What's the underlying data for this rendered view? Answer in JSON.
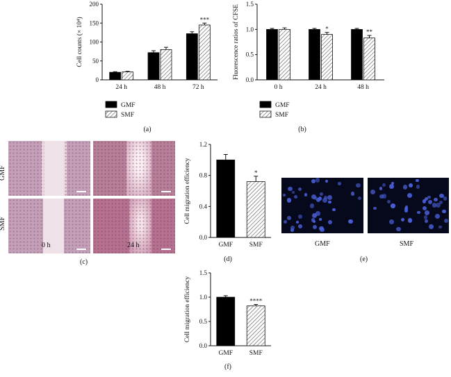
{
  "colors": {
    "gmf": "#000000",
    "smf_hatch": "#555555",
    "wound_tissue": "#c9a0b2",
    "fluor_bg": "#06091c",
    "fluor_cell": "#4a5fd6"
  },
  "chart_data": [
    {
      "id": "a",
      "type": "bar",
      "panel_label": "(a)",
      "ylabel": "Cell counts (× 10⁴)",
      "ylim": [
        0,
        200
      ],
      "yticks": [
        0,
        50,
        100,
        150,
        200
      ],
      "categories": [
        "24 h",
        "48 h",
        "72 h"
      ],
      "series": [
        {
          "name": "GMF",
          "values": [
            20,
            72,
            122
          ],
          "errors": [
            1.5,
            5,
            5
          ],
          "sig": [
            "",
            "",
            ""
          ]
        },
        {
          "name": "SMF",
          "values": [
            21,
            80,
            145
          ],
          "errors": [
            1.5,
            6,
            5
          ],
          "sig": [
            "",
            "",
            "***"
          ]
        }
      ],
      "legend": "bottom-left"
    },
    {
      "id": "b",
      "type": "bar",
      "panel_label": "(b)",
      "ylabel": "Fluorescence ratios of CFSE",
      "ylim": [
        0,
        1.5
      ],
      "yticks": [
        "0.0",
        "0.5",
        "1.0",
        "1.5"
      ],
      "categories": [
        "0 h",
        "24 h",
        "48 h"
      ],
      "series": [
        {
          "name": "GMF",
          "values": [
            1.0,
            1.0,
            1.0
          ],
          "errors": [
            0.02,
            0.02,
            0.02
          ],
          "sig": [
            "",
            "",
            ""
          ]
        },
        {
          "name": "SMF",
          "values": [
            1.0,
            0.9,
            0.83
          ],
          "errors": [
            0.03,
            0.04,
            0.05
          ],
          "sig": [
            "",
            "*",
            "**"
          ]
        }
      ],
      "legend": "bottom-left"
    },
    {
      "id": "d",
      "type": "bar",
      "panel_label": "(d)",
      "ylabel": "Cell migration efficiency",
      "ylim": [
        0,
        1.2
      ],
      "yticks": [
        "0.0",
        "0.4",
        "0.8",
        "1.2"
      ],
      "categories": [
        "GMF",
        "SMF"
      ],
      "values": [
        1.0,
        0.72
      ],
      "errors": [
        0.07,
        0.07
      ],
      "sig": [
        "",
        "*"
      ]
    },
    {
      "id": "f",
      "type": "bar",
      "panel_label": "(f)",
      "ylabel": "Cell migration efficiency",
      "ylim": [
        0,
        1.5
      ],
      "yticks": [
        "0.0",
        "0.5",
        "1.0",
        "1.5"
      ],
      "categories": [
        "GMF",
        "SMF"
      ],
      "values": [
        1.0,
        0.82
      ],
      "errors": [
        0.03,
        0.03
      ],
      "sig": [
        "",
        "****"
      ]
    }
  ],
  "panel_c": {
    "label": "(c)",
    "rows": [
      "GMF",
      "SMF"
    ],
    "columns": [
      "0 h",
      "24 h"
    ]
  },
  "panel_e": {
    "label": "(e)",
    "images": [
      "GMF",
      "SMF"
    ]
  }
}
